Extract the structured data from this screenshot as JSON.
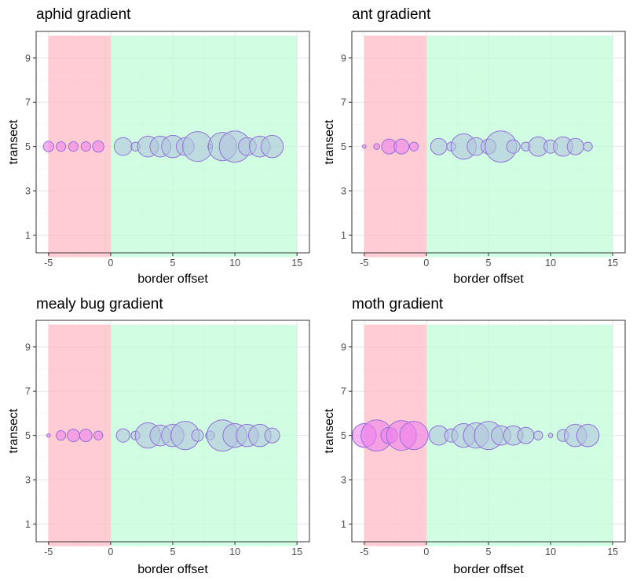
{
  "chart_data": [
    {
      "type": "scatter",
      "title": "aphid gradient",
      "xlabel": "border offset",
      "ylabel": "transect",
      "xlim": [
        -6,
        16
      ],
      "ylim": [
        0.2,
        10.2
      ],
      "xticks": [
        "-5",
        "0",
        "5",
        "10",
        "15"
      ],
      "yticks": [
        "1",
        "3",
        "5",
        "7",
        "9"
      ],
      "regions": [
        {
          "x": [
            -5,
            0
          ],
          "y": [
            0,
            10
          ],
          "color": "#ffb6c1"
        },
        {
          "x": [
            0,
            15
          ],
          "y": [
            0,
            10
          ],
          "color": "#bdfcd5"
        }
      ],
      "marker_colors": {
        "negative": "#ee82ee",
        "positive": "#b0c4de",
        "edge": "#9370db"
      },
      "points": [
        {
          "x": -5,
          "y": 5,
          "size": 0.35
        },
        {
          "x": -4,
          "y": 5,
          "size": 0.32
        },
        {
          "x": -3,
          "y": 5,
          "size": 0.32
        },
        {
          "x": -2,
          "y": 5,
          "size": 0.32
        },
        {
          "x": -1,
          "y": 5,
          "size": 0.38
        },
        {
          "x": 1,
          "y": 5,
          "size": 0.6
        },
        {
          "x": 2,
          "y": 5,
          "size": 0.3
        },
        {
          "x": 3,
          "y": 5,
          "size": 0.7
        },
        {
          "x": 4,
          "y": 5,
          "size": 0.7
        },
        {
          "x": 5,
          "y": 5,
          "size": 0.75
        },
        {
          "x": 6,
          "y": 5,
          "size": 0.6
        },
        {
          "x": 7,
          "y": 5,
          "size": 1.0
        },
        {
          "x": 8,
          "y": 5,
          "size": 0.15
        },
        {
          "x": 9,
          "y": 5,
          "size": 0.95
        },
        {
          "x": 10,
          "y": 5,
          "size": 1.05
        },
        {
          "x": 11,
          "y": 5,
          "size": 0.6
        },
        {
          "x": 12,
          "y": 5,
          "size": 0.7
        },
        {
          "x": 13,
          "y": 5,
          "size": 0.75
        }
      ]
    },
    {
      "type": "scatter",
      "title": "ant gradient",
      "xlabel": "border offset",
      "ylabel": "transect",
      "xlim": [
        -6,
        16
      ],
      "ylim": [
        0.2,
        10.2
      ],
      "xticks": [
        "-5",
        "0",
        "5",
        "10",
        "15"
      ],
      "yticks": [
        "1",
        "3",
        "5",
        "7",
        "9"
      ],
      "regions": [
        {
          "x": [
            -5,
            0
          ],
          "y": [
            0,
            10
          ],
          "color": "#ffb6c1"
        },
        {
          "x": [
            0,
            15
          ],
          "y": [
            0,
            10
          ],
          "color": "#bdfcd5"
        }
      ],
      "marker_colors": {
        "negative": "#ee82ee",
        "positive": "#b0c4de",
        "edge": "#9370db"
      },
      "points": [
        {
          "x": -5,
          "y": 5,
          "size": 0.12
        },
        {
          "x": -4,
          "y": 5,
          "size": 0.2
        },
        {
          "x": -3,
          "y": 5,
          "size": 0.5
        },
        {
          "x": -2,
          "y": 5,
          "size": 0.5
        },
        {
          "x": -1,
          "y": 5,
          "size": 0.3
        },
        {
          "x": 1,
          "y": 5,
          "size": 0.55
        },
        {
          "x": 2,
          "y": 5,
          "size": 0.3
        },
        {
          "x": 3,
          "y": 5,
          "size": 0.85
        },
        {
          "x": 4,
          "y": 5,
          "size": 0.6
        },
        {
          "x": 5,
          "y": 5,
          "size": 0.5
        },
        {
          "x": 6,
          "y": 5,
          "size": 1.05
        },
        {
          "x": 7,
          "y": 5,
          "size": 0.45
        },
        {
          "x": 8,
          "y": 5,
          "size": 0.3
        },
        {
          "x": 9,
          "y": 5,
          "size": 0.65
        },
        {
          "x": 10,
          "y": 5,
          "size": 0.45
        },
        {
          "x": 11,
          "y": 5,
          "size": 0.65
        },
        {
          "x": 12,
          "y": 5,
          "size": 0.55
        },
        {
          "x": 13,
          "y": 5,
          "size": 0.3
        }
      ]
    },
    {
      "type": "scatter",
      "title": "mealy bug gradient",
      "xlabel": "border offset",
      "ylabel": "transect",
      "xlim": [
        -6,
        16
      ],
      "ylim": [
        0.2,
        10.2
      ],
      "xticks": [
        "-5",
        "0",
        "5",
        "10",
        "15"
      ],
      "yticks": [
        "1",
        "3",
        "5",
        "7",
        "9"
      ],
      "regions": [
        {
          "x": [
            -5,
            0
          ],
          "y": [
            0,
            10
          ],
          "color": "#ffb6c1"
        },
        {
          "x": [
            0,
            15
          ],
          "y": [
            0,
            10
          ],
          "color": "#bdfcd5"
        }
      ],
      "marker_colors": {
        "negative": "#ee82ee",
        "positive": "#b0c4de",
        "edge": "#9370db"
      },
      "points": [
        {
          "x": -5,
          "y": 5,
          "size": 0.12
        },
        {
          "x": -4,
          "y": 5,
          "size": 0.32
        },
        {
          "x": -3,
          "y": 5,
          "size": 0.42
        },
        {
          "x": -2,
          "y": 5,
          "size": 0.42
        },
        {
          "x": -1,
          "y": 5,
          "size": 0.3
        },
        {
          "x": 1,
          "y": 5,
          "size": 0.45
        },
        {
          "x": 2,
          "y": 5,
          "size": 0.3
        },
        {
          "x": 3,
          "y": 5,
          "size": 0.85
        },
        {
          "x": 4,
          "y": 5,
          "size": 0.7
        },
        {
          "x": 5,
          "y": 5,
          "size": 0.75
        },
        {
          "x": 6,
          "y": 5,
          "size": 0.95
        },
        {
          "x": 7,
          "y": 5,
          "size": 0.4
        },
        {
          "x": 8,
          "y": 5,
          "size": 0.3
        },
        {
          "x": 9,
          "y": 5,
          "size": 1.05
        },
        {
          "x": 10,
          "y": 5,
          "size": 0.8
        },
        {
          "x": 11,
          "y": 5,
          "size": 0.75
        },
        {
          "x": 12,
          "y": 5,
          "size": 0.75
        },
        {
          "x": 13,
          "y": 5,
          "size": 0.5
        }
      ]
    },
    {
      "type": "scatter",
      "title": "moth gradient",
      "xlabel": "border offset",
      "ylabel": "transect",
      "xlim": [
        -6,
        16
      ],
      "ylim": [
        0.2,
        10.2
      ],
      "xticks": [
        "-5",
        "0",
        "5",
        "10",
        "15"
      ],
      "yticks": [
        "1",
        "3",
        "5",
        "7",
        "9"
      ],
      "regions": [
        {
          "x": [
            -5,
            0
          ],
          "y": [
            0,
            10
          ],
          "color": "#ffb6c1"
        },
        {
          "x": [
            0,
            15
          ],
          "y": [
            0,
            10
          ],
          "color": "#bdfcd5"
        }
      ],
      "marker_colors": {
        "negative": "#ee82ee",
        "positive": "#b0c4de",
        "edge": "#9370db"
      },
      "points": [
        {
          "x": -5,
          "y": 5,
          "size": 0.8
        },
        {
          "x": -4,
          "y": 5,
          "size": 1.05
        },
        {
          "x": -3,
          "y": 5,
          "size": 0.55
        },
        {
          "x": -2,
          "y": 5,
          "size": 1.0
        },
        {
          "x": -1,
          "y": 5,
          "size": 0.95
        },
        {
          "x": 1,
          "y": 5,
          "size": 0.65
        },
        {
          "x": 2,
          "y": 5,
          "size": 0.45
        },
        {
          "x": 3,
          "y": 5,
          "size": 0.8
        },
        {
          "x": 4,
          "y": 5,
          "size": 0.85
        },
        {
          "x": 5,
          "y": 5,
          "size": 0.95
        },
        {
          "x": 6,
          "y": 5,
          "size": 0.65
        },
        {
          "x": 7,
          "y": 5,
          "size": 0.65
        },
        {
          "x": 8,
          "y": 5,
          "size": 0.55
        },
        {
          "x": 9,
          "y": 5,
          "size": 0.3
        },
        {
          "x": 10,
          "y": 5,
          "size": 0.15
        },
        {
          "x": 11,
          "y": 5,
          "size": 0.4
        },
        {
          "x": 12,
          "y": 5,
          "size": 0.75
        },
        {
          "x": 13,
          "y": 5,
          "size": 0.75
        }
      ]
    }
  ]
}
